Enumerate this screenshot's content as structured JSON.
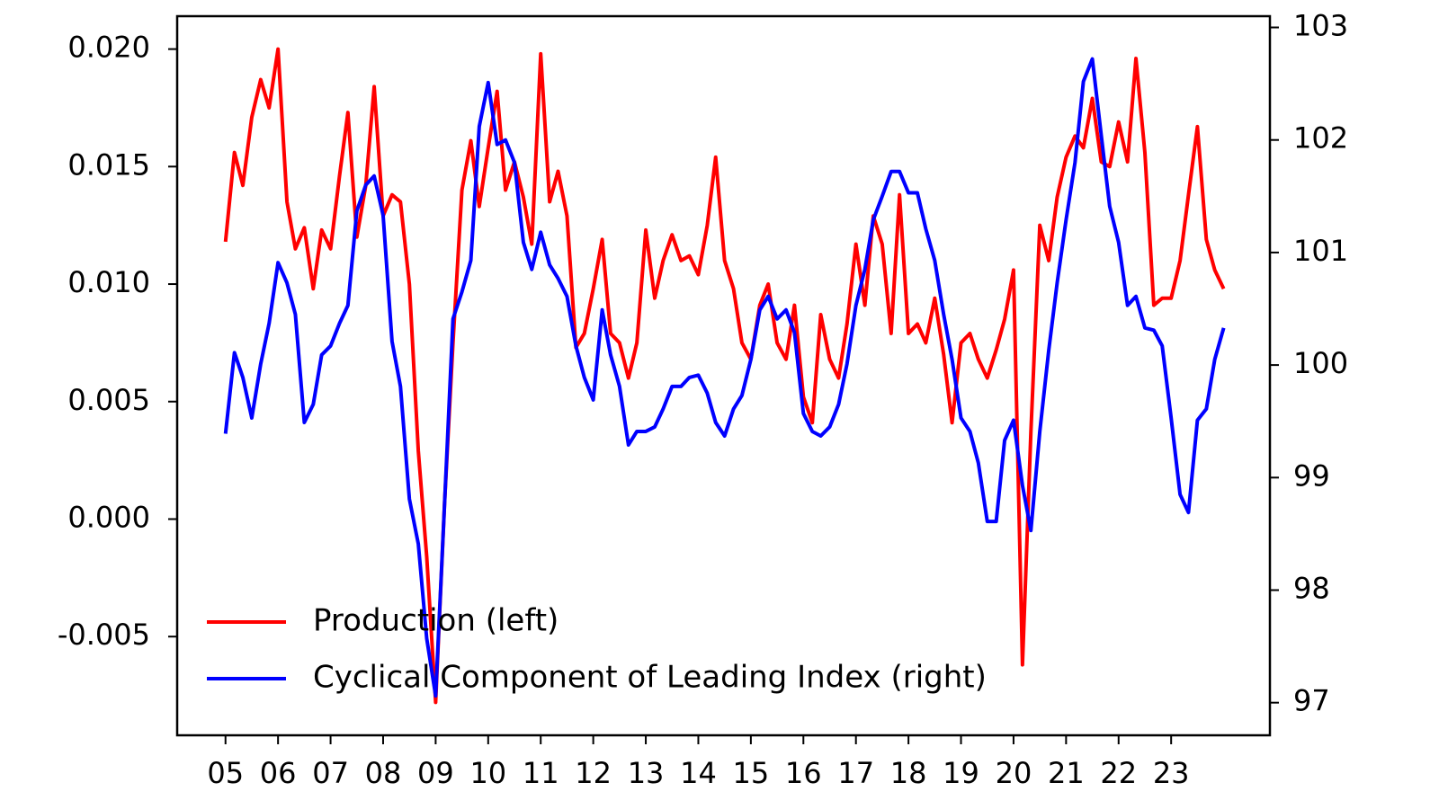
{
  "chart_data": {
    "type": "line",
    "x": [
      2005,
      2005.17,
      2005.33,
      2005.5,
      2005.67,
      2005.83,
      2006,
      2006.17,
      2006.33,
      2006.5,
      2006.67,
      2006.83,
      2007,
      2007.17,
      2007.33,
      2007.5,
      2007.67,
      2007.83,
      2008,
      2008.17,
      2008.33,
      2008.5,
      2008.67,
      2008.83,
      2009,
      2009.17,
      2009.33,
      2009.5,
      2009.67,
      2009.83,
      2010,
      2010.17,
      2010.33,
      2010.5,
      2010.67,
      2010.83,
      2011,
      2011.17,
      2011.33,
      2011.5,
      2011.67,
      2011.83,
      2012,
      2012.17,
      2012.33,
      2012.5,
      2012.67,
      2012.83,
      2013,
      2013.17,
      2013.33,
      2013.5,
      2013.67,
      2013.83,
      2014,
      2014.17,
      2014.33,
      2014.5,
      2014.67,
      2014.83,
      2015,
      2015.17,
      2015.33,
      2015.5,
      2015.67,
      2015.83,
      2016,
      2016.17,
      2016.33,
      2016.5,
      2016.67,
      2016.83,
      2017,
      2017.17,
      2017.33,
      2017.5,
      2017.67,
      2017.83,
      2018,
      2018.17,
      2018.33,
      2018.5,
      2018.67,
      2018.83,
      2019,
      2019.17,
      2019.33,
      2019.5,
      2019.67,
      2019.83,
      2020,
      2020.17,
      2020.33,
      2020.5,
      2020.67,
      2020.83,
      2021,
      2021.17,
      2021.33,
      2021.5,
      2021.67,
      2021.83,
      2022,
      2022.17,
      2022.33,
      2022.5,
      2022.67,
      2022.83,
      2023,
      2023.17,
      2023.33,
      2023.5,
      2023.67,
      2023.83,
      2024
    ],
    "series": [
      {
        "name": "Production (left)",
        "color": "#ff0000",
        "axis": "y",
        "values": [
          0.0118,
          0.0156,
          0.0142,
          0.0171,
          0.0187,
          0.0175,
          0.02,
          0.0135,
          0.0115,
          0.0124,
          0.0098,
          0.0123,
          0.0115,
          0.0146,
          0.0173,
          0.012,
          0.0142,
          0.0184,
          0.0129,
          0.0138,
          0.0135,
          0.01,
          0.0029,
          -0.0016,
          -0.0078,
          0.0007,
          0.0075,
          0.014,
          0.0161,
          0.0133,
          0.0158,
          0.0182,
          0.014,
          0.0152,
          0.0137,
          0.0117,
          0.0198,
          0.0135,
          0.0148,
          0.0129,
          0.0073,
          0.0079,
          0.0098,
          0.0119,
          0.0079,
          0.0075,
          0.006,
          0.0075,
          0.0123,
          0.0094,
          0.011,
          0.0121,
          0.011,
          0.0112,
          0.0104,
          0.0125,
          0.0154,
          0.011,
          0.0098,
          0.0075,
          0.0068,
          0.0091,
          0.01,
          0.0075,
          0.0068,
          0.0091,
          0.0052,
          0.0041,
          0.0087,
          0.0068,
          0.006,
          0.0083,
          0.0117,
          0.0091,
          0.0129,
          0.0117,
          0.0079,
          0.0138,
          0.0079,
          0.0083,
          0.0075,
          0.0094,
          0.007,
          0.0041,
          0.0075,
          0.0079,
          0.0068,
          0.006,
          0.0072,
          0.0085,
          0.0106,
          -0.0062,
          0.0037,
          0.0125,
          0.011,
          0.0137,
          0.0154,
          0.0163,
          0.0158,
          0.0179,
          0.0152,
          0.015,
          0.0169,
          0.0152,
          0.0196,
          0.0156,
          0.0091,
          0.0094,
          0.0094,
          0.011,
          0.0138,
          0.0167,
          0.0119,
          0.0106,
          0.0098
        ]
      },
      {
        "name": "Cyclical Component of Leading Index (right)",
        "color": "#0000ff",
        "axis": "y2",
        "values": [
          99.39,
          100.11,
          99.89,
          99.53,
          100.01,
          100.37,
          100.91,
          100.73,
          100.45,
          99.49,
          99.65,
          100.09,
          100.17,
          100.37,
          100.53,
          101.37,
          101.6,
          101.68,
          101.33,
          100.21,
          99.81,
          98.81,
          98.41,
          97.57,
          97.06,
          98.77,
          100.41,
          100.65,
          100.93,
          102.12,
          102.51,
          101.96,
          102.0,
          101.8,
          101.09,
          100.85,
          101.18,
          100.89,
          100.77,
          100.61,
          100.17,
          99.89,
          99.69,
          100.49,
          100.09,
          99.81,
          99.29,
          99.41,
          99.41,
          99.45,
          99.61,
          99.81,
          99.81,
          99.89,
          99.91,
          99.75,
          99.49,
          99.37,
          99.61,
          99.73,
          100.05,
          100.49,
          100.61,
          100.41,
          100.49,
          100.29,
          99.57,
          99.41,
          99.37,
          99.45,
          99.65,
          100.01,
          100.53,
          100.85,
          101.29,
          101.5,
          101.72,
          101.72,
          101.53,
          101.53,
          101.21,
          100.93,
          100.45,
          100.05,
          99.53,
          99.41,
          99.13,
          98.61,
          98.61,
          99.33,
          99.51,
          98.93,
          98.53,
          99.41,
          100.13,
          100.73,
          101.29,
          101.8,
          102.52,
          102.72,
          102.04,
          101.41,
          101.09,
          100.53,
          100.61,
          100.33,
          100.31,
          100.17,
          99.53,
          98.85,
          98.69,
          99.51,
          99.61,
          100.05,
          100.33
        ]
      }
    ],
    "xlim": [
      2004.08,
      2024.88
    ],
    "xticks": [
      {
        "value": 2005,
        "label": "05"
      },
      {
        "value": 2006,
        "label": "06"
      },
      {
        "value": 2007,
        "label": "07"
      },
      {
        "value": 2008,
        "label": "08"
      },
      {
        "value": 2009,
        "label": "09"
      },
      {
        "value": 2010,
        "label": "10"
      },
      {
        "value": 2011,
        "label": "11"
      },
      {
        "value": 2012,
        "label": "12"
      },
      {
        "value": 2013,
        "label": "13"
      },
      {
        "value": 2014,
        "label": "14"
      },
      {
        "value": 2015,
        "label": "15"
      },
      {
        "value": 2016,
        "label": "16"
      },
      {
        "value": 2017,
        "label": "17"
      },
      {
        "value": 2018,
        "label": "18"
      },
      {
        "value": 2019,
        "label": "19"
      },
      {
        "value": 2020,
        "label": "20"
      },
      {
        "value": 2021,
        "label": "21"
      },
      {
        "value": 2022,
        "label": "22"
      },
      {
        "value": 2023,
        "label": "23"
      }
    ],
    "ylim": [
      -0.0092,
      0.0214
    ],
    "yticks": [
      -0.005,
      {
        "value": 0,
        "label": "0.000"
      },
      0.005,
      {
        "value": 0.01,
        "label": "0.010"
      },
      0.015,
      {
        "value": 0.02,
        "label": "0.020"
      }
    ],
    "y2lim": [
      96.71,
      103.1
    ],
    "y2ticks": [
      97,
      98,
      99,
      100,
      101,
      102,
      103
    ],
    "grid": false,
    "legend": "lower left"
  }
}
